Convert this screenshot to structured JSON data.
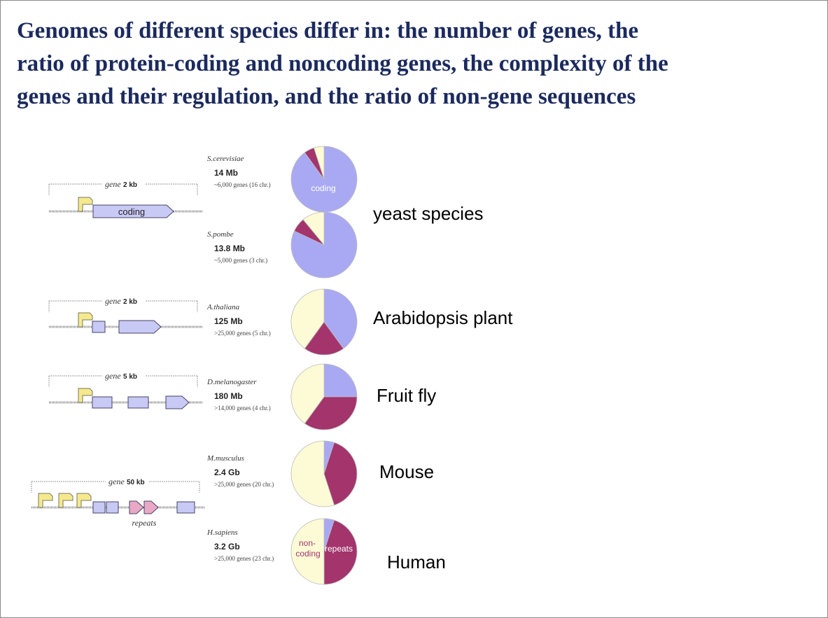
{
  "title": [
    "Genomes of different species differ in: the number of genes, the",
    "ratio of protein-coding and noncoding genes, the complexity of the",
    "genes and their regulation, and the ratio of non-gene sequences"
  ],
  "pie_colors": {
    "coding": "#a9a9f3",
    "repeats": "#a3346c",
    "noncoding": "#fdfbd6"
  },
  "species": [
    {
      "name": "S.cerevisiae",
      "size": "14 Mb",
      "genes": "~6,000 genes (16 chr.)",
      "pie": {
        "coding": 90,
        "repeats": 5,
        "noncoding": 5
      }
    },
    {
      "name": "S.pombe",
      "size": "13.8 Mb",
      "genes": "~5,000 genes (3 chr.)",
      "pie": {
        "coding": 82,
        "repeats": 7,
        "noncoding": 11
      }
    },
    {
      "name": "A.thaliana",
      "size": "125 Mb",
      "genes": ">25,000 genes (5 chr.)",
      "pie": {
        "coding": 40,
        "repeats": 20,
        "noncoding": 40
      }
    },
    {
      "name": "D.melanogaster",
      "size": "180 Mb",
      "genes": ">14,000 genes (4 chr.)",
      "pie": {
        "coding": 25,
        "repeats": 35,
        "noncoding": 40
      }
    },
    {
      "name": "M.musculus",
      "size": "2.4 Gb",
      "genes": ">25,000 genes (20 chr.)",
      "pie": {
        "coding": 5,
        "repeats": 40,
        "noncoding": 55
      }
    },
    {
      "name": "H.sapiens",
      "size": "3.2 Gb",
      "genes": ">25,000 genes (23 chr.)",
      "pie": {
        "coding": 5,
        "repeats": 45,
        "noncoding": 50
      }
    }
  ],
  "pie_labels": {
    "coding_yeast": "coding",
    "noncoding_human": [
      "non-",
      "coding"
    ],
    "repeats_human": "repeats"
  },
  "groups": [
    "yeast species",
    "Arabidopsis plant",
    "Fruit fly",
    "Mouse",
    "Human"
  ],
  "gene_diagrams": [
    {
      "gene": "gene",
      "length": "2 kb",
      "exon_label": "coding"
    },
    {
      "gene": "gene",
      "length": "2 kb"
    },
    {
      "gene": "gene",
      "length": "5 kb"
    },
    {
      "gene": "gene",
      "length": "50 kb",
      "repeat_label": "repeats"
    }
  ]
}
